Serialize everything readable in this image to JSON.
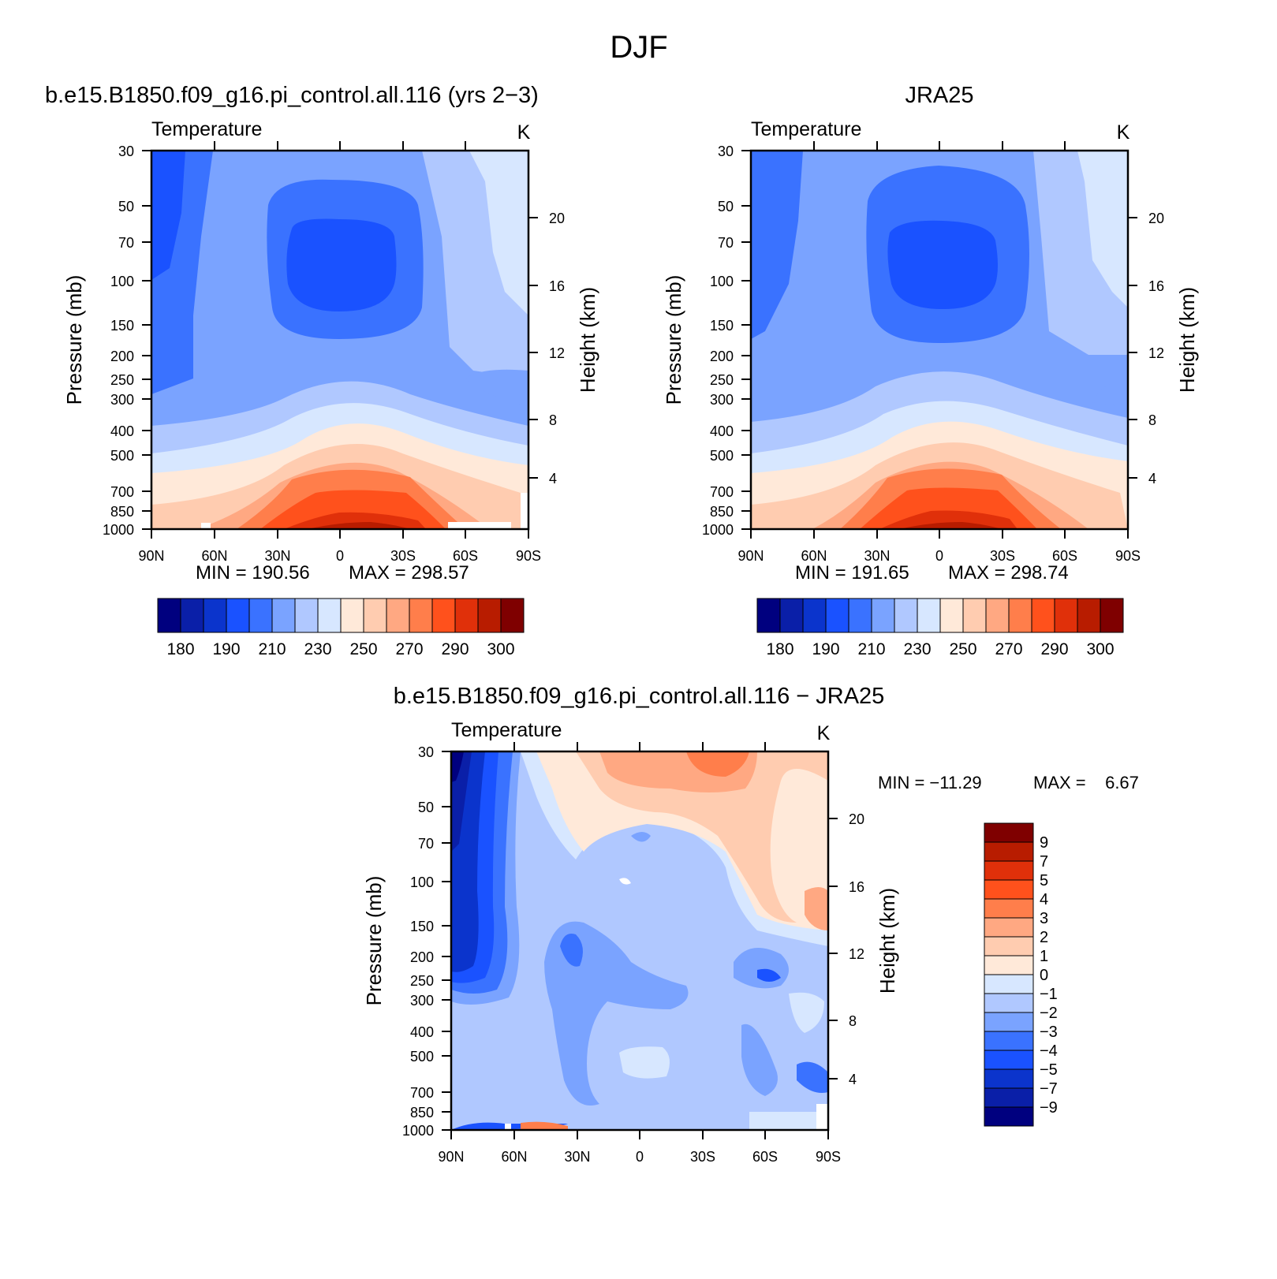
{
  "page": {
    "title": "DJF",
    "panel1_title": "b.e15.B1850.f09_g16.pi_control.all.116 (yrs 2−3)",
    "panel2_title": "JRA25",
    "panel3_title": "b.e15.B1850.f09_g16.pi_control.all.116 − JRA25"
  },
  "colors": {
    "abs": [
      "#00007f",
      "#0a1fa8",
      "#0b34cc",
      "#1a52ff",
      "#3a72ff",
      "#7aa3ff",
      "#b0c8ff",
      "#d7e7ff",
      "#ffe9d9",
      "#ffccb0",
      "#ffa882",
      "#ff7e4b",
      "#ff511c",
      "#e0300a",
      "#b81c00",
      "#7f0000"
    ],
    "diff": [
      "#00007f",
      "#0a1fa8",
      "#0b34cc",
      "#1a52ff",
      "#3a72ff",
      "#7aa3ff",
      "#b0c8ff",
      "#d7e7ff",
      "#ffe9d9",
      "#ffccb0",
      "#ffa882",
      "#ff7e4b",
      "#ff511c",
      "#e0300a",
      "#b81c00",
      "#7f0000"
    ]
  },
  "chart_data": [
    {
      "type": "contour",
      "title": "b.e15.B1850.f09_g16.pi_control.all.116 (yrs 2−3)",
      "variable": "Temperature",
      "units": "K",
      "ylabel": "Pressure (mb)",
      "y2label": "Height (km)",
      "xticks": [
        "90N",
        "60N",
        "30N",
        "0",
        "30S",
        "60S",
        "90S"
      ],
      "yticks": [
        "30",
        "50",
        "70",
        "100",
        "150",
        "200",
        "250",
        "300",
        "400",
        "500",
        "700",
        "850",
        "1000"
      ],
      "y2ticks": [
        "20",
        "16",
        "12",
        "8",
        "4"
      ],
      "min_label": "MIN = 190.56",
      "max_label": "MAX = 298.57",
      "min": 190.56,
      "max": 298.57,
      "colorbar_labels": [
        "180",
        "190",
        "210",
        "230",
        "250",
        "270",
        "290",
        "300"
      ]
    },
    {
      "type": "contour",
      "title": "JRA25",
      "variable": "Temperature",
      "units": "K",
      "ylabel": "Pressure (mb)",
      "y2label": "Height (km)",
      "xticks": [
        "90N",
        "60N",
        "30N",
        "0",
        "30S",
        "60S",
        "90S"
      ],
      "yticks": [
        "30",
        "50",
        "70",
        "100",
        "150",
        "200",
        "250",
        "300",
        "400",
        "500",
        "700",
        "850",
        "1000"
      ],
      "y2ticks": [
        "20",
        "16",
        "12",
        "8",
        "4"
      ],
      "min_label": "MIN = 191.65",
      "max_label": "MAX = 298.74",
      "min": 191.65,
      "max": 298.74,
      "colorbar_labels": [
        "180",
        "190",
        "210",
        "230",
        "250",
        "270",
        "290",
        "300"
      ]
    },
    {
      "type": "contour",
      "title": "b.e15.B1850.f09_g16.pi_control.all.116 − JRA25",
      "variable": "Temperature",
      "units": "K",
      "ylabel": "Pressure (mb)",
      "y2label": "Height (km)",
      "xticks": [
        "90N",
        "60N",
        "30N",
        "0",
        "30S",
        "60S",
        "90S"
      ],
      "yticks": [
        "30",
        "50",
        "70",
        "100",
        "150",
        "200",
        "250",
        "300",
        "400",
        "500",
        "700",
        "850",
        "1000"
      ],
      "y2ticks": [
        "20",
        "16",
        "12",
        "8",
        "4"
      ],
      "min_label": "MIN = −11.29",
      "max_label": "MAX =    6.67",
      "min": -11.29,
      "max": 6.67,
      "colorbar_labels": [
        "9",
        "7",
        "5",
        "4",
        "3",
        "2",
        "1",
        "0",
        "−1",
        "−2",
        "−3",
        "−4",
        "−5",
        "−7",
        "−9"
      ]
    }
  ]
}
